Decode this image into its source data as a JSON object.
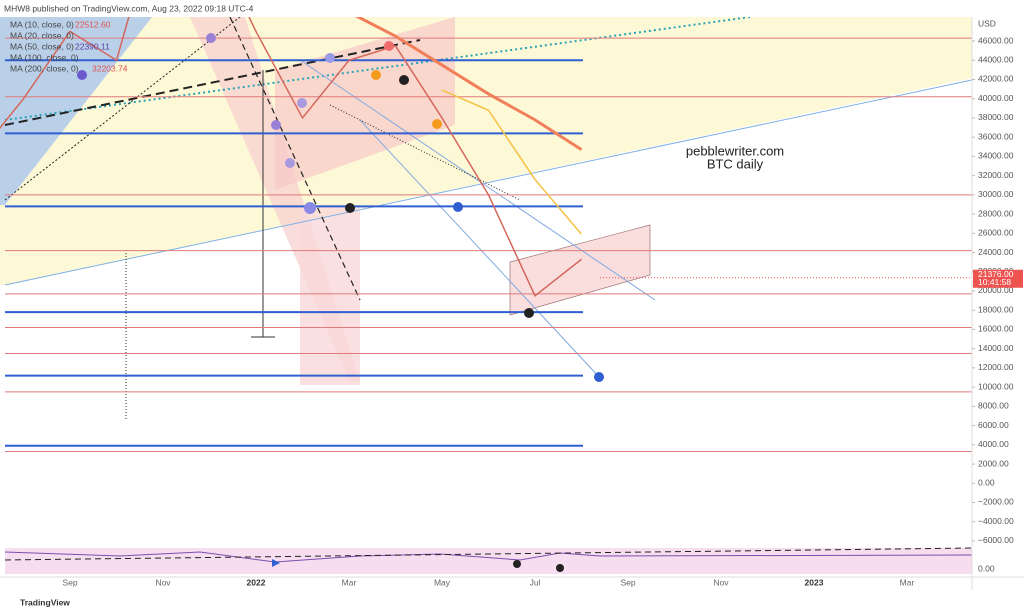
{
  "chart_data": {
    "type": "line",
    "header": "MHW8 published on TradingView.com, Aug 23, 2022 09:18 UTC-4",
    "legend_lines": [
      "MA (10, close, 0)",
      "22512.60",
      "MA (20, close, 0)",
      "MA (50, close, 0)",
      "22390.11"
    ],
    "annotation": [
      "pebblewriter.com",
      "BTC daily"
    ],
    "currency": "USD",
    "footer": "TradingView",
    "categories": [
      null,
      null,
      "Sep",
      null,
      "Nov",
      null,
      "2022",
      null,
      "Mar",
      null,
      "May",
      null,
      "Jul",
      null,
      "Sep",
      null,
      "Nov",
      null,
      "2023",
      null,
      "Mar",
      null
    ],
    "price": {
      "color": "#d4675c",
      "values": [
        34000,
        40000,
        47000,
        44000,
        61000,
        57000,
        47000,
        38000,
        44000,
        45500,
        38000,
        30000,
        19500,
        23300,
        null,
        null,
        null,
        null,
        null,
        null,
        null,
        null
      ]
    },
    "last_price": {
      "value": 21376,
      "label": "21376.00",
      "time": "10:41:58",
      "color": "#ef5350"
    },
    "series": [
      {
        "name": "MA (100, close, 0)",
        "color": "#f5c142",
        "values": [
          null,
          null,
          null,
          null,
          null,
          null,
          null,
          null,
          null,
          null,
          40900,
          38800,
          31600,
          25900,
          null,
          null,
          null,
          null,
          null,
          null,
          null,
          null
        ]
      },
      {
        "name": "MA (200, close, 0)",
        "color": "#f07f5a",
        "value_label": "32203.74",
        "values": [
          null,
          null,
          null,
          null,
          null,
          null,
          null,
          null,
          49000,
          46500,
          43500,
          40500,
          37800,
          34700,
          null,
          null,
          null,
          null,
          null,
          null,
          null,
          null
        ]
      }
    ],
    "levels": [
      {
        "color": "#2f5fd0",
        "values": [
          44000,
          36400,
          28800,
          17800,
          11200,
          3900
        ]
      },
      {
        "color": "#e07a7a",
        "values": [
          46300,
          40200,
          30000,
          24200,
          19700,
          16200,
          13500,
          9500,
          3300
        ]
      }
    ],
    "ylim": [
      -9750,
      48500
    ],
    "yticks": [
      {
        "value": 46000,
        "label": "46000.00"
      },
      {
        "value": 44000,
        "label": "44000.00"
      },
      {
        "value": 42000,
        "label": "42000.00"
      },
      {
        "value": 40000,
        "label": "40000.00"
      },
      {
        "value": 38000,
        "label": "38000.00"
      },
      {
        "value": 36000,
        "label": "36000.00"
      },
      {
        "value": 34000,
        "label": "34000.00"
      },
      {
        "value": 32000,
        "label": "32000.00"
      },
      {
        "value": 30000,
        "label": "30000.00"
      },
      {
        "value": 28000,
        "label": "28000.00"
      },
      {
        "value": 26000,
        "label": "26000.00"
      },
      {
        "value": 24000,
        "label": "24000.00"
      },
      {
        "value": 22000,
        "label": "22000.00"
      },
      {
        "value": 20000,
        "label": "20000.00"
      },
      {
        "value": 18000,
        "label": "18000.00"
      },
      {
        "value": 16000,
        "label": "16000.00"
      },
      {
        "value": 14000,
        "label": "14000.00"
      },
      {
        "value": 12000,
        "label": "12000.00"
      },
      {
        "value": 10000,
        "label": "10000.00"
      },
      {
        "value": 8000,
        "label": "8000.00"
      },
      {
        "value": 6000,
        "label": "6000.00"
      },
      {
        "value": 4000,
        "label": "4000.00"
      },
      {
        "value": 2000,
        "label": "2000.00"
      },
      {
        "value": 0,
        "label": "0.00"
      },
      {
        "value": -2000,
        "label": "−2000.00"
      },
      {
        "value": -4000,
        "label": "−4000.00"
      },
      {
        "value": -6000,
        "label": "−6000.00"
      }
    ],
    "rsi_tick": "0.00"
  }
}
